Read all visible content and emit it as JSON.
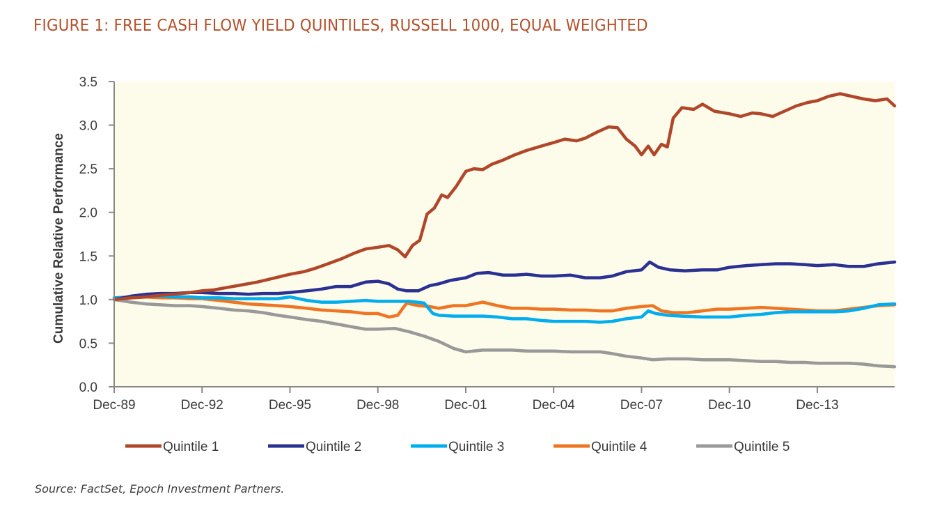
{
  "figure": {
    "title": "FIGURE 1: FREE CASH FLOW YIELD QUINTILES, RUSSELL 1000, EQUAL WEIGHTED",
    "source": "Source: FactSet, Epoch Investment Partners."
  },
  "colors": {
    "title": "#b5502a",
    "plot_background": "#fdfbea",
    "axis": "#888888"
  },
  "chart_data": {
    "type": "line",
    "title": "FIGURE 1: FREE CASH FLOW YIELD QUINTILES, RUSSELL 1000, EQUAL WEIGHTED",
    "xlabel": "",
    "ylabel": "Cumulative Relative Performance",
    "xlim": [
      1989.92,
      2016.56
    ],
    "ylim": [
      0,
      3.5
    ],
    "yticks": [
      0.0,
      0.5,
      1.0,
      1.5,
      2.0,
      2.5,
      3.0,
      3.5
    ],
    "ytick_labels": [
      "0.0",
      "0.5",
      "1.0",
      "1.5",
      "2.0",
      "2.5",
      "3.0",
      "3.5"
    ],
    "xticks": [
      1989.92,
      1992.92,
      1995.92,
      1998.92,
      2001.92,
      2004.92,
      2007.92,
      2010.92,
      2013.92
    ],
    "xtick_labels": [
      "Dec-89",
      "Dec-92",
      "Dec-95",
      "Dec-98",
      "Dec-01",
      "Dec-04",
      "Dec-07",
      "Dec-10",
      "Dec-13"
    ],
    "grid": false,
    "legend_position": "bottom",
    "series": [
      {
        "name": "Quintile 1",
        "color": "#b0472a",
        "x": [
          1989.92,
          1990.5,
          1991.0,
          1991.5,
          1992.0,
          1992.5,
          1992.92,
          1993.3,
          1993.8,
          1994.3,
          1994.8,
          1995.3,
          1995.92,
          1996.4,
          1996.8,
          1997.3,
          1997.7,
          1998.1,
          1998.5,
          1998.92,
          1999.3,
          1999.6,
          1999.85,
          2000.1,
          2000.35,
          2000.6,
          2000.85,
          2001.1,
          2001.3,
          2001.6,
          2001.92,
          2002.2,
          2002.5,
          2002.8,
          2003.2,
          2003.6,
          2004.0,
          2004.5,
          2004.92,
          2005.3,
          2005.7,
          2006.0,
          2006.4,
          2006.8,
          2007.1,
          2007.4,
          2007.7,
          2007.92,
          2008.15,
          2008.35,
          2008.6,
          2008.8,
          2009.0,
          2009.3,
          2009.7,
          2010.0,
          2010.4,
          2010.92,
          2011.3,
          2011.7,
          2012.0,
          2012.4,
          2012.8,
          2013.2,
          2013.6,
          2013.92,
          2014.3,
          2014.7,
          2015.1,
          2015.5,
          2015.9,
          2016.3,
          2016.56
        ],
        "values": [
          1.0,
          1.02,
          1.03,
          1.05,
          1.06,
          1.08,
          1.1,
          1.11,
          1.14,
          1.17,
          1.2,
          1.24,
          1.29,
          1.32,
          1.36,
          1.42,
          1.47,
          1.53,
          1.58,
          1.6,
          1.62,
          1.57,
          1.49,
          1.62,
          1.68,
          1.98,
          2.05,
          2.2,
          2.17,
          2.3,
          2.47,
          2.5,
          2.49,
          2.55,
          2.6,
          2.66,
          2.71,
          2.76,
          2.8,
          2.84,
          2.82,
          2.85,
          2.92,
          2.98,
          2.97,
          2.84,
          2.76,
          2.66,
          2.76,
          2.66,
          2.78,
          2.75,
          3.08,
          3.2,
          3.18,
          3.24,
          3.16,
          3.13,
          3.1,
          3.14,
          3.13,
          3.1,
          3.16,
          3.22,
          3.26,
          3.28,
          3.33,
          3.36,
          3.33,
          3.3,
          3.28,
          3.3,
          3.22
        ]
      },
      {
        "name": "Quintile 2",
        "color": "#2b3192",
        "x": [
          1989.92,
          1990.5,
          1991.0,
          1991.5,
          1992.0,
          1992.5,
          1992.92,
          1993.5,
          1994.0,
          1994.5,
          1995.0,
          1995.5,
          1995.92,
          1996.5,
          1997.0,
          1997.5,
          1998.0,
          1998.5,
          1998.92,
          1999.3,
          1999.6,
          1999.9,
          2000.3,
          2000.7,
          2001.0,
          2001.4,
          2001.92,
          2002.3,
          2002.7,
          2003.2,
          2003.6,
          2004.0,
          2004.5,
          2004.92,
          2005.5,
          2006.0,
          2006.5,
          2006.92,
          2007.4,
          2007.92,
          2008.2,
          2008.5,
          2008.9,
          2009.4,
          2010.0,
          2010.5,
          2010.92,
          2011.5,
          2012.0,
          2012.5,
          2013.0,
          2013.5,
          2013.92,
          2014.5,
          2015.0,
          2015.5,
          2016.0,
          2016.56
        ],
        "values": [
          1.0,
          1.04,
          1.06,
          1.07,
          1.07,
          1.08,
          1.08,
          1.07,
          1.07,
          1.06,
          1.07,
          1.07,
          1.08,
          1.1,
          1.12,
          1.15,
          1.15,
          1.2,
          1.21,
          1.18,
          1.12,
          1.1,
          1.1,
          1.16,
          1.18,
          1.22,
          1.25,
          1.3,
          1.31,
          1.28,
          1.28,
          1.29,
          1.27,
          1.27,
          1.28,
          1.25,
          1.25,
          1.27,
          1.32,
          1.34,
          1.43,
          1.37,
          1.34,
          1.33,
          1.34,
          1.34,
          1.37,
          1.39,
          1.4,
          1.41,
          1.41,
          1.4,
          1.39,
          1.4,
          1.38,
          1.38,
          1.41,
          1.43
        ]
      },
      {
        "name": "Quintile 3",
        "color": "#00aeef",
        "x": [
          1989.92,
          1990.5,
          1991.0,
          1991.5,
          1992.0,
          1992.5,
          1992.92,
          1993.5,
          1994.0,
          1994.5,
          1995.0,
          1995.5,
          1995.92,
          1996.5,
          1997.0,
          1997.5,
          1998.0,
          1998.5,
          1998.92,
          1999.5,
          2000.0,
          2000.5,
          2000.8,
          2001.0,
          2001.5,
          2001.92,
          2002.5,
          2003.0,
          2003.5,
          2004.0,
          2004.5,
          2004.92,
          2005.5,
          2006.0,
          2006.5,
          2006.92,
          2007.4,
          2007.92,
          2008.15,
          2008.4,
          2008.8,
          2009.3,
          2010.0,
          2010.5,
          2010.92,
          2011.5,
          2012.0,
          2012.5,
          2013.0,
          2013.5,
          2013.92,
          2014.5,
          2015.0,
          2015.5,
          2016.0,
          2016.56
        ],
        "values": [
          1.02,
          1.03,
          1.04,
          1.04,
          1.03,
          1.03,
          1.02,
          1.02,
          1.01,
          1.01,
          1.01,
          1.01,
          1.03,
          0.99,
          0.97,
          0.97,
          0.98,
          0.99,
          0.98,
          0.98,
          0.98,
          0.96,
          0.84,
          0.82,
          0.81,
          0.81,
          0.81,
          0.8,
          0.78,
          0.78,
          0.76,
          0.75,
          0.75,
          0.75,
          0.74,
          0.75,
          0.78,
          0.8,
          0.87,
          0.84,
          0.82,
          0.81,
          0.8,
          0.8,
          0.8,
          0.82,
          0.83,
          0.85,
          0.86,
          0.86,
          0.86,
          0.86,
          0.87,
          0.9,
          0.94,
          0.95
        ]
      },
      {
        "name": "Quintile 4",
        "color": "#ee7623",
        "x": [
          1989.92,
          1990.5,
          1991.0,
          1991.5,
          1992.0,
          1992.5,
          1992.92,
          1993.5,
          1994.0,
          1994.5,
          1995.0,
          1995.5,
          1995.92,
          1996.5,
          1997.0,
          1997.5,
          1998.0,
          1998.5,
          1998.92,
          1999.3,
          1999.6,
          1999.9,
          2000.3,
          2000.7,
          2001.0,
          2001.5,
          2001.92,
          2002.5,
          2003.0,
          2003.5,
          2004.0,
          2004.5,
          2004.92,
          2005.5,
          2006.0,
          2006.5,
          2006.92,
          2007.4,
          2007.92,
          2008.3,
          2008.6,
          2009.0,
          2009.5,
          2010.0,
          2010.5,
          2010.92,
          2011.5,
          2012.0,
          2012.5,
          2013.0,
          2013.5,
          2013.92,
          2014.5,
          2015.0,
          2015.5,
          2016.0,
          2016.56
        ],
        "values": [
          1.0,
          1.02,
          1.03,
          1.02,
          1.02,
          1.01,
          1.01,
          0.99,
          0.97,
          0.95,
          0.94,
          0.93,
          0.92,
          0.9,
          0.88,
          0.87,
          0.86,
          0.84,
          0.84,
          0.8,
          0.82,
          0.96,
          0.93,
          0.92,
          0.9,
          0.93,
          0.93,
          0.97,
          0.93,
          0.9,
          0.9,
          0.89,
          0.89,
          0.88,
          0.88,
          0.87,
          0.87,
          0.9,
          0.92,
          0.93,
          0.87,
          0.85,
          0.85,
          0.87,
          0.89,
          0.89,
          0.9,
          0.91,
          0.9,
          0.89,
          0.88,
          0.87,
          0.87,
          0.89,
          0.91,
          0.93,
          0.94
        ]
      },
      {
        "name": "Quintile 5",
        "color": "#999999",
        "x": [
          1989.92,
          1990.5,
          1991.0,
          1991.5,
          1992.0,
          1992.5,
          1992.92,
          1993.5,
          1994.0,
          1994.5,
          1995.0,
          1995.5,
          1995.92,
          1996.5,
          1997.0,
          1997.5,
          1998.0,
          1998.5,
          1998.92,
          1999.5,
          2000.0,
          2000.5,
          2001.0,
          2001.5,
          2001.92,
          2002.5,
          2003.0,
          2003.5,
          2004.0,
          2004.5,
          2004.92,
          2005.5,
          2006.0,
          2006.5,
          2006.92,
          2007.4,
          2007.92,
          2008.3,
          2008.8,
          2009.5,
          2010.0,
          2010.5,
          2010.92,
          2011.5,
          2012.0,
          2012.5,
          2013.0,
          2013.5,
          2013.92,
          2014.5,
          2015.0,
          2015.5,
          2016.0,
          2016.56
        ],
        "values": [
          1.0,
          0.97,
          0.95,
          0.94,
          0.93,
          0.93,
          0.92,
          0.9,
          0.88,
          0.87,
          0.85,
          0.82,
          0.8,
          0.77,
          0.75,
          0.72,
          0.69,
          0.66,
          0.66,
          0.67,
          0.63,
          0.58,
          0.52,
          0.44,
          0.4,
          0.42,
          0.42,
          0.42,
          0.41,
          0.41,
          0.41,
          0.4,
          0.4,
          0.4,
          0.38,
          0.35,
          0.33,
          0.31,
          0.32,
          0.32,
          0.31,
          0.31,
          0.31,
          0.3,
          0.29,
          0.29,
          0.28,
          0.28,
          0.27,
          0.27,
          0.27,
          0.26,
          0.24,
          0.23
        ]
      }
    ]
  }
}
